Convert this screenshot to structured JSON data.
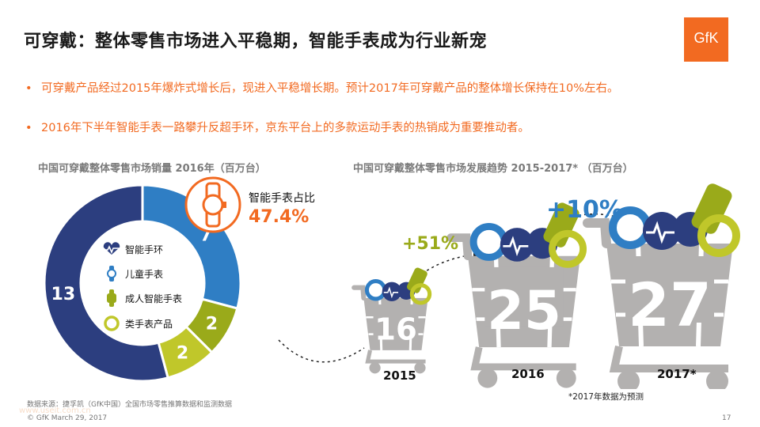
{
  "page": {
    "title": "可穿戴：整体零售市场进入平稳期，智能手表成为行业新宠",
    "logo_text": "GfK",
    "bullets": [
      "可穿戴产品经过2015年爆炸式增长后，现进入平稳增长期。预计2017年可穿戴产品的整体增长保持在10%左右。",
      "2016年下半年智能手表一路攀升反超手环，京东平台上的多款运动手表的热销成为重要推动者。"
    ],
    "bullet_symbol": "•",
    "footnote": "*2017年数据为预测",
    "source": "数据来源：捷孚凯（GfK中国）全国市场零售推算数据和监测数据",
    "copyright": "© GfK March 29, 2017",
    "page_number": "17",
    "watermark": "www.useit.com.cn"
  },
  "colors": {
    "accent": "#f26a21",
    "blue_light": "#2f7ec4",
    "navy": "#2c3e7f",
    "olive": "#9aaa1a",
    "gray": "#b0b0b0"
  },
  "share": {
    "label": "智能手表占比",
    "value": "47.4%",
    "icon": "smartwatch-icon"
  },
  "chart_data": [
    {
      "type": "pie",
      "title": "中国可穿戴整体零售市场销量 2016年（百万台）",
      "donut": true,
      "series": [
        {
          "name": "智能手环",
          "value": 13,
          "color": "#2c3e7f",
          "icon": "heart-band-icon"
        },
        {
          "name": "儿童手表",
          "value": 7,
          "color": "#2f7ec4",
          "icon": "kids-watch-icon"
        },
        {
          "name": "成人智能手表",
          "value": 2,
          "color": "#9aaa1a",
          "icon": "adult-smartwatch-icon"
        },
        {
          "name": "类手表产品",
          "value": 2,
          "color": "#c0c72a",
          "icon": "ring-icon"
        }
      ]
    },
    {
      "type": "bar",
      "title": "中国可穿戴整体零售市场发展趋势 2015-2017* （百万台）",
      "categories": [
        "2015",
        "2016",
        "2017*"
      ],
      "values": [
        16,
        25,
        27
      ],
      "growth_labels": [
        "+51%",
        "+10%"
      ],
      "visual": "shopping-cart"
    }
  ]
}
